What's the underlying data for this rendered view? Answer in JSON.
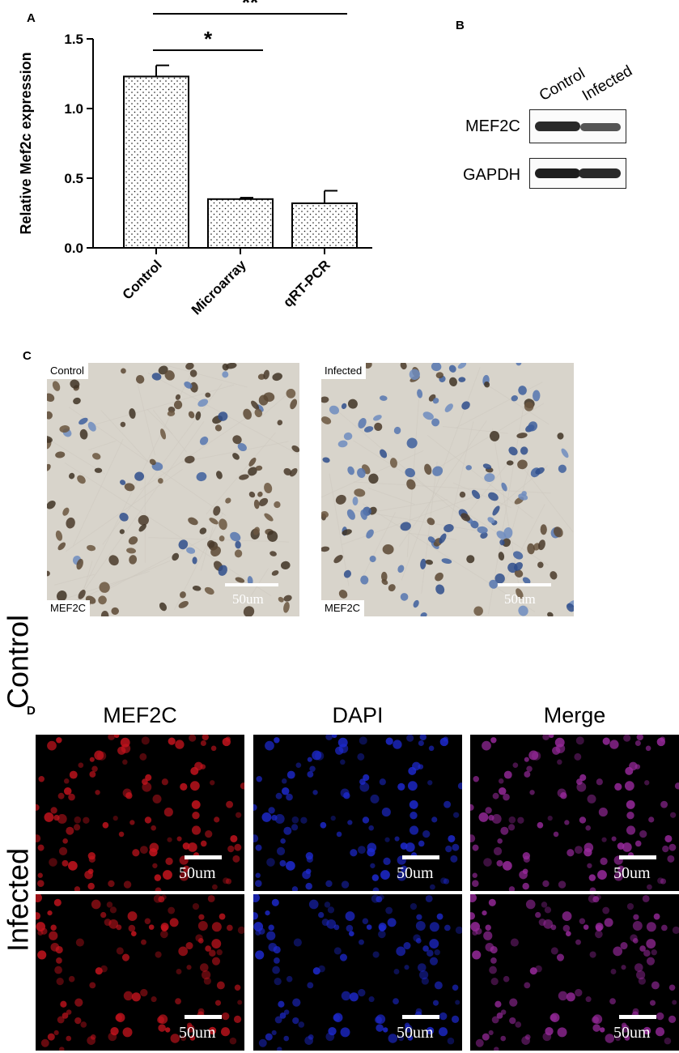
{
  "panel_labels": {
    "a": "A",
    "b": "B",
    "c": "C",
    "d": "D"
  },
  "chart_data": {
    "type": "bar",
    "categories": [
      "Control",
      "Microarray",
      "qRT-PCR"
    ],
    "values": [
      1.23,
      0.35,
      0.32
    ],
    "errors": [
      0.08,
      0.01,
      0.09
    ],
    "ylabel": "Relative Mef2c expression",
    "yticks": [
      "0.0",
      "0.5",
      "1.0",
      "1.5"
    ],
    "ylim": [
      0,
      1.5
    ],
    "bar_fill": "dotted",
    "significance": [
      {
        "from": "Control",
        "to": "Microarray",
        "label": "*"
      },
      {
        "from": "Control",
        "to": "qRT-PCR",
        "label": "**"
      }
    ]
  },
  "western_blot": {
    "columns": [
      "Control",
      "Infected"
    ],
    "rows": [
      "MEF2C",
      "GAPDH"
    ]
  },
  "ihc": {
    "panels": [
      {
        "condition": "Control",
        "stain": "MEF2C",
        "scale": "50um"
      },
      {
        "condition": "Infected",
        "stain": "MEF2C",
        "scale": "50um"
      }
    ]
  },
  "fluorescence": {
    "columns": [
      "MEF2C",
      "DAPI",
      "Merge"
    ],
    "rows": [
      "Control",
      "Infected"
    ],
    "scale": "50um",
    "channel_colors": [
      "#c8141e",
      "#1e2ad2",
      "#9a2a9e"
    ]
  }
}
